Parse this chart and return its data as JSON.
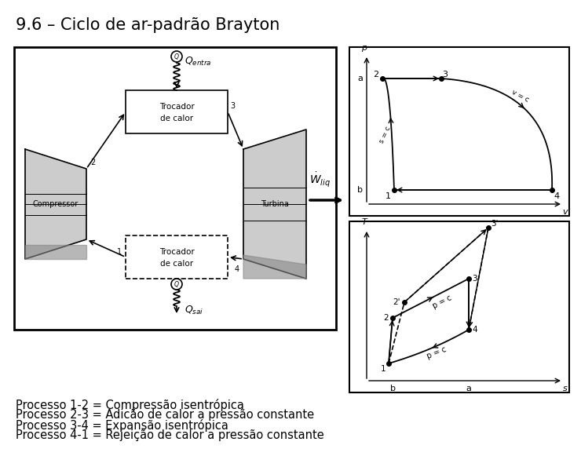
{
  "title": "9.6 – Ciclo de ar-padrão Brayton",
  "title_fontsize": 15,
  "background_color": "#ffffff",
  "text_color": "#000000",
  "process_texts": [
    "Processo 1-2 = Compressão isentрópica",
    "Processo 2-3 = Adição de calor a pressão constante",
    "Processo 3-4 = Expansão isentрópica",
    "Processo 4-1 = Rejeição de calor a pressão constante"
  ],
  "fontsize_process": 10.5
}
